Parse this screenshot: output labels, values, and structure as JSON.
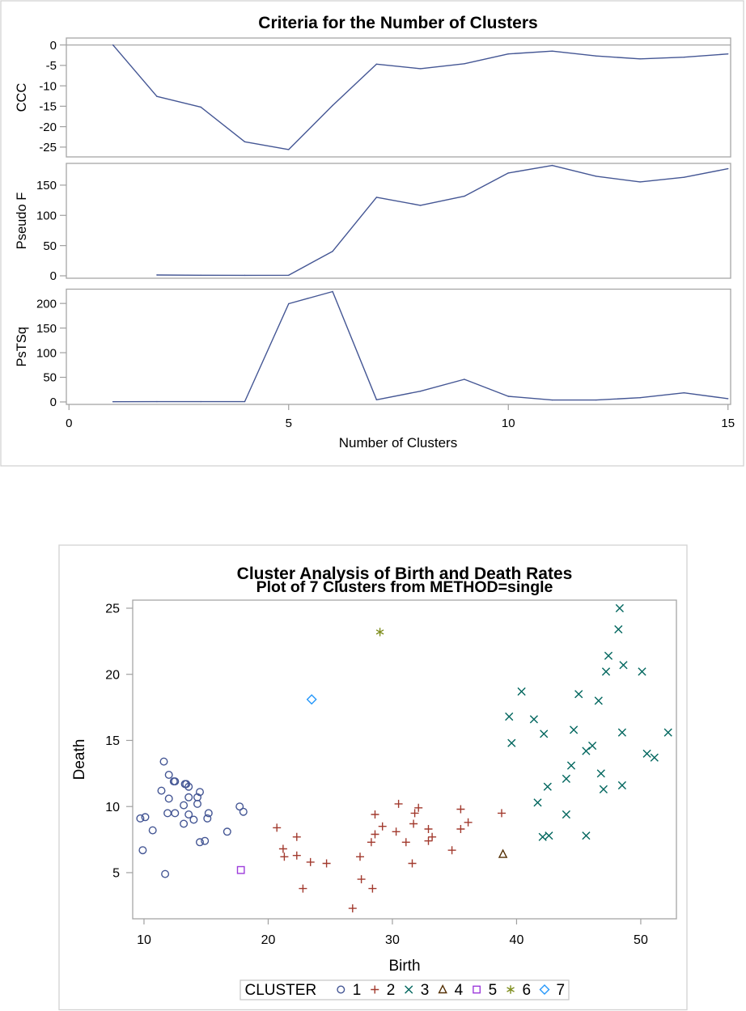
{
  "chart_data": [
    {
      "type": "line",
      "title": "Criteria for the Number of Clusters",
      "xlabel": "Number of Clusters",
      "xlim": [
        -0.06,
        15.06
      ],
      "xticks": [
        0,
        5,
        10,
        15
      ],
      "line_color": "#445694",
      "grid": false,
      "panels": [
        {
          "ylabel": "CCC",
          "ylim": [
            -27.4,
            1.7
          ],
          "yticks": [
            0,
            -5,
            -10,
            -15,
            -20,
            -25
          ],
          "reference_line": 0,
          "x": [
            1,
            2,
            3,
            4,
            5,
            6,
            7,
            8,
            9,
            10,
            11,
            12,
            13,
            14,
            15
          ],
          "y": [
            0,
            -12.6,
            -15.2,
            -23.7,
            -25.6,
            -14.8,
            -4.7,
            -5.8,
            -4.6,
            -2.2,
            -1.5,
            -2.7,
            -3.4,
            -3.0,
            -2.2
          ]
        },
        {
          "ylabel": "Pseudo F",
          "ylim": [
            -4,
            186
          ],
          "yticks": [
            0,
            50,
            100,
            150
          ],
          "x": [
            2,
            3,
            4,
            5,
            6,
            7,
            8,
            9,
            10,
            11,
            12,
            13,
            14,
            15
          ],
          "y": [
            1.4,
            0.9,
            0.8,
            0.9,
            40.6,
            129.9,
            116.5,
            131.7,
            170.1,
            182.5,
            164.7,
            155.3,
            163.0,
            177.2
          ]
        },
        {
          "ylabel": "PsTSq",
          "ylim": [
            -5,
            229
          ],
          "yticks": [
            0,
            50,
            100,
            150,
            200
          ],
          "x": [
            1,
            2,
            3,
            4,
            5,
            6,
            7,
            8,
            9,
            10,
            11,
            12,
            13,
            14,
            15
          ],
          "y": [
            0.5,
            0.6,
            0.6,
            0.7,
            199.5,
            224.1,
            4.4,
            21.8,
            45.9,
            11.5,
            3.8,
            3.8,
            8.7,
            18.5,
            6.6
          ]
        }
      ]
    },
    {
      "type": "scatter",
      "title": "Cluster Analysis of Birth and Death Rates",
      "subtitle": "Plot of 7 Clusters from METHOD=single",
      "xlabel": "Birth",
      "ylabel": "Death",
      "xlim": [
        9.09,
        52.87
      ],
      "ylim": [
        1.51,
        25.61
      ],
      "xticks": [
        10,
        20,
        30,
        40,
        50
      ],
      "yticks": [
        5,
        10,
        15,
        20,
        25
      ],
      "grid": false,
      "legend": {
        "title": "CLUSTER",
        "position": "bottom"
      },
      "series": [
        {
          "name": "1",
          "marker": "circle",
          "color": "#445694",
          "points": [
            [
              11.6,
              13.4
            ],
            [
              12.0,
              12.4
            ],
            [
              12.4,
              11.9
            ],
            [
              12.5,
              11.9
            ],
            [
              13.3,
              11.7
            ],
            [
              13.4,
              11.7
            ],
            [
              13.6,
              11.5
            ],
            [
              14.5,
              11.1
            ],
            [
              11.4,
              11.2
            ],
            [
              12.0,
              10.6
            ],
            [
              13.6,
              10.7
            ],
            [
              14.3,
              10.7
            ],
            [
              14.3,
              10.2
            ],
            [
              13.2,
              10.1
            ],
            [
              17.7,
              10.0
            ],
            [
              18.0,
              9.6
            ],
            [
              9.7,
              9.1
            ],
            [
              10.1,
              9.2
            ],
            [
              11.9,
              9.5
            ],
            [
              12.5,
              9.5
            ],
            [
              13.6,
              9.4
            ],
            [
              15.2,
              9.5
            ],
            [
              15.1,
              9.1
            ],
            [
              14.0,
              9.0
            ],
            [
              13.2,
              8.7
            ],
            [
              10.7,
              8.2
            ],
            [
              16.7,
              8.1
            ],
            [
              14.5,
              7.3
            ],
            [
              14.9,
              7.4
            ],
            [
              9.9,
              6.7
            ],
            [
              11.7,
              4.9
            ]
          ]
        },
        {
          "name": "2",
          "marker": "plus",
          "color": "#A23A2E",
          "points": [
            [
              20.7,
              8.4
            ],
            [
              22.3,
              7.7
            ],
            [
              21.2,
              6.8
            ],
            [
              21.3,
              6.2
            ],
            [
              22.3,
              6.3
            ],
            [
              23.4,
              5.8
            ],
            [
              24.7,
              5.7
            ],
            [
              22.8,
              3.8
            ],
            [
              26.8,
              2.3
            ],
            [
              27.4,
              6.2
            ],
            [
              27.5,
              4.5
            ],
            [
              28.4,
              3.8
            ],
            [
              28.3,
              7.3
            ],
            [
              28.6,
              7.9
            ],
            [
              28.6,
              9.4
            ],
            [
              29.2,
              8.5
            ],
            [
              30.5,
              10.2
            ],
            [
              30.3,
              8.1
            ],
            [
              31.1,
              7.3
            ],
            [
              31.6,
              5.7
            ],
            [
              31.7,
              8.7
            ],
            [
              31.8,
              9.5
            ],
            [
              32.1,
              9.9
            ],
            [
              32.9,
              8.3
            ],
            [
              32.9,
              7.4
            ],
            [
              33.2,
              7.7
            ],
            [
              34.8,
              6.7
            ],
            [
              35.5,
              9.8
            ],
            [
              35.5,
              8.3
            ],
            [
              36.1,
              8.8
            ],
            [
              38.8,
              9.5
            ]
          ]
        },
        {
          "name": "3",
          "marker": "x",
          "color": "#01665E",
          "points": [
            [
              48.3,
              25.0
            ],
            [
              48.2,
              23.4
            ],
            [
              47.4,
              21.4
            ],
            [
              48.6,
              20.7
            ],
            [
              47.2,
              20.2
            ],
            [
              50.1,
              20.2
            ],
            [
              40.4,
              18.7
            ],
            [
              45.0,
              18.5
            ],
            [
              46.6,
              18.0
            ],
            [
              39.4,
              16.8
            ],
            [
              41.4,
              16.6
            ],
            [
              42.2,
              15.5
            ],
            [
              44.6,
              15.8
            ],
            [
              48.5,
              15.6
            ],
            [
              52.2,
              15.6
            ],
            [
              39.6,
              14.8
            ],
            [
              46.1,
              14.6
            ],
            [
              45.6,
              14.2
            ],
            [
              50.5,
              14.0
            ],
            [
              51.1,
              13.7
            ],
            [
              44.4,
              13.1
            ],
            [
              46.8,
              12.5
            ],
            [
              44.0,
              12.1
            ],
            [
              42.5,
              11.5
            ],
            [
              47.0,
              11.3
            ],
            [
              48.5,
              11.6
            ],
            [
              41.7,
              10.3
            ],
            [
              44.0,
              9.4
            ],
            [
              42.1,
              7.7
            ],
            [
              42.6,
              7.8
            ],
            [
              45.6,
              7.8
            ]
          ]
        },
        {
          "name": "4",
          "marker": "triangle",
          "color": "#543005",
          "points": [
            [
              38.9,
              6.4
            ]
          ]
        },
        {
          "name": "5",
          "marker": "square",
          "color": "#9D3CDB",
          "points": [
            [
              17.8,
              5.2
            ]
          ]
        },
        {
          "name": "6",
          "marker": "star",
          "color": "#7F8E1F",
          "points": [
            [
              29.0,
              23.2
            ]
          ]
        },
        {
          "name": "7",
          "marker": "diamond",
          "color": "#2597FA",
          "points": [
            [
              23.5,
              18.1
            ]
          ]
        }
      ]
    }
  ]
}
